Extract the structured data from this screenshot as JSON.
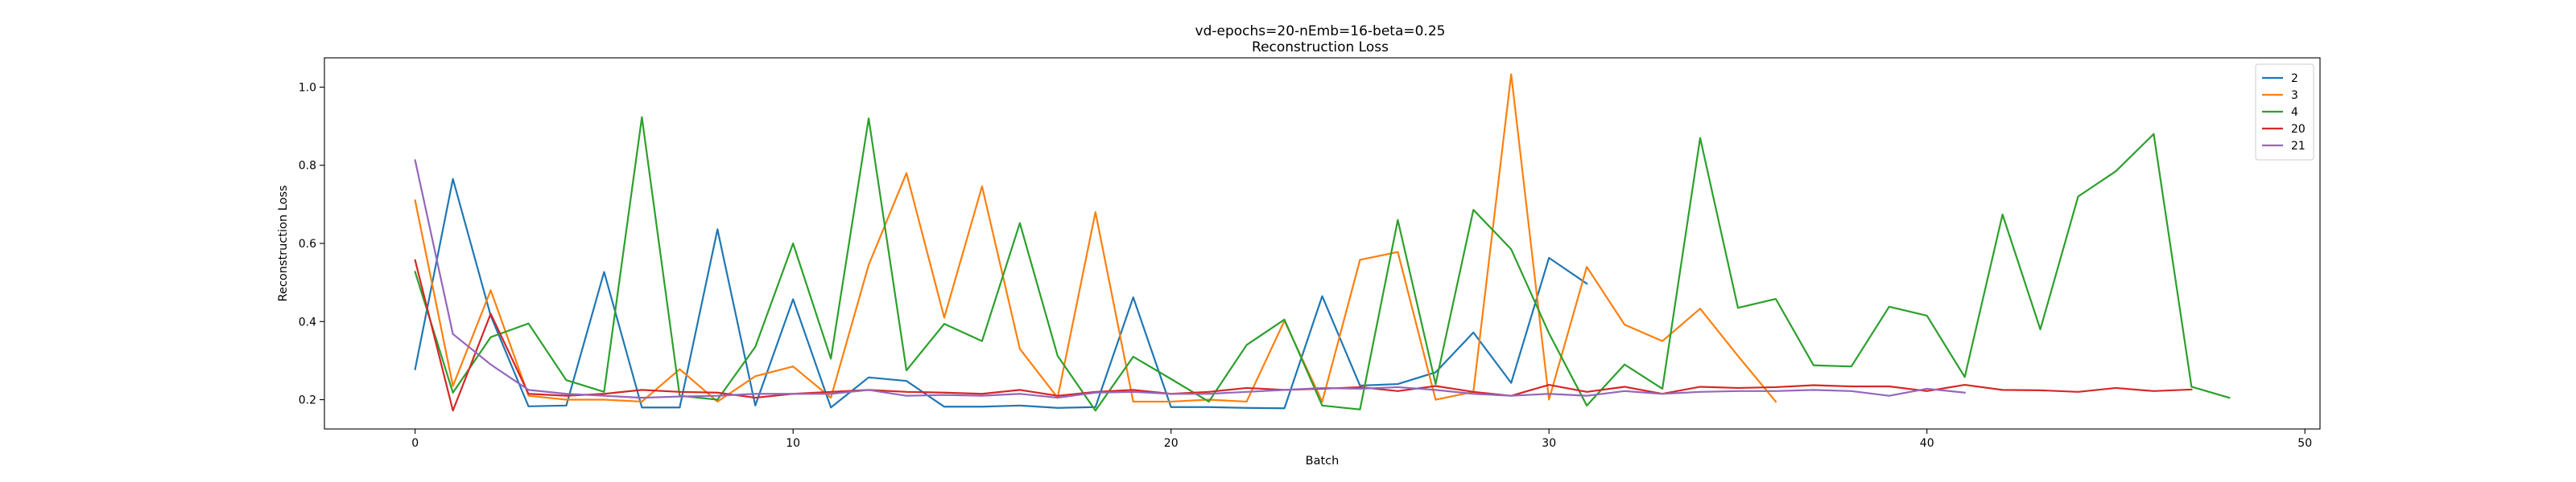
{
  "chart_data": {
    "type": "line",
    "title": "vd-epochs=20-nEmb=16-beta=0.25",
    "subtitle": "Reconstruction Loss",
    "xlabel": "Batch",
    "ylabel": "Reconstruction Loss",
    "xlim": [
      -2.4,
      50.4
    ],
    "ylim": [
      0.125,
      1.075
    ],
    "xticks": [
      0,
      10,
      20,
      30,
      40,
      50
    ],
    "yticks": [
      0.2,
      0.4,
      0.6,
      0.8,
      1.0
    ],
    "xtick_labels": [
      "0",
      "10",
      "20",
      "30",
      "40",
      "50"
    ],
    "ytick_labels": [
      "0.2",
      "0.4",
      "0.6",
      "0.8",
      "1.0"
    ],
    "grid": false,
    "legend_position": "upper-right",
    "series": [
      {
        "name": "2",
        "color": "#1f77b4",
        "values": [
          0.278,
          0.765,
          0.415,
          0.183,
          0.185,
          0.527,
          0.18,
          0.18,
          0.636,
          0.185,
          0.457,
          0.18,
          0.257,
          0.248,
          0.182,
          0.182,
          0.185,
          0.179,
          0.181,
          0.462,
          0.181,
          0.181,
          0.179,
          0.178,
          0.465,
          0.236,
          0.24,
          0.27,
          0.372,
          0.243,
          0.563,
          0.497
        ]
      },
      {
        "name": "3",
        "color": "#ff7f0e",
        "values": [
          0.71,
          0.235,
          0.48,
          0.21,
          0.2,
          0.2,
          0.195,
          0.278,
          0.195,
          0.26,
          0.285,
          0.205,
          0.545,
          0.78,
          0.41,
          0.746,
          0.33,
          0.205,
          0.68,
          0.195,
          0.195,
          0.2,
          0.195,
          0.402,
          0.195,
          0.558,
          0.578,
          0.2,
          0.22,
          1.033,
          0.2,
          0.54,
          0.392,
          0.35,
          0.433,
          0.312,
          0.195
        ]
      },
      {
        "name": "4",
        "color": "#2ca02c",
        "values": [
          0.527,
          0.218,
          0.36,
          0.395,
          0.25,
          0.22,
          0.923,
          0.21,
          0.2,
          0.335,
          0.6,
          0.305,
          0.92,
          0.275,
          0.394,
          0.35,
          0.652,
          0.312,
          0.172,
          0.31,
          0.253,
          0.195,
          0.34,
          0.405,
          0.185,
          0.175,
          0.66,
          0.24,
          0.686,
          0.585,
          0.37,
          0.185,
          0.29,
          0.228,
          0.87,
          0.435,
          0.458,
          0.288,
          0.285,
          0.438,
          0.415,
          0.258,
          0.674,
          0.38,
          0.72,
          0.785,
          0.88,
          0.233,
          0.205
        ]
      },
      {
        "name": "20",
        "color": "#d62728",
        "values": [
          0.557,
          0.172,
          0.42,
          0.215,
          0.21,
          0.215,
          0.225,
          0.22,
          0.218,
          0.205,
          0.215,
          0.22,
          0.225,
          0.22,
          0.218,
          0.215,
          0.225,
          0.21,
          0.22,
          0.225,
          0.215,
          0.22,
          0.23,
          0.225,
          0.228,
          0.232,
          0.222,
          0.235,
          0.22,
          0.21,
          0.238,
          0.22,
          0.233,
          0.215,
          0.233,
          0.23,
          0.232,
          0.237,
          0.234,
          0.234,
          0.222,
          0.238,
          0.225,
          0.224,
          0.22,
          0.23,
          0.222,
          0.226
        ]
      },
      {
        "name": "21",
        "color": "#9467bd",
        "values": [
          0.813,
          0.368,
          0.29,
          0.225,
          0.215,
          0.21,
          0.205,
          0.208,
          0.21,
          0.215,
          0.215,
          0.215,
          0.225,
          0.21,
          0.212,
          0.21,
          0.215,
          0.205,
          0.218,
          0.22,
          0.215,
          0.215,
          0.22,
          0.225,
          0.23,
          0.228,
          0.232,
          0.225,
          0.215,
          0.21,
          0.215,
          0.21,
          0.222,
          0.215,
          0.22,
          0.222,
          0.222,
          0.225,
          0.222,
          0.21,
          0.228,
          0.218
        ]
      }
    ]
  }
}
